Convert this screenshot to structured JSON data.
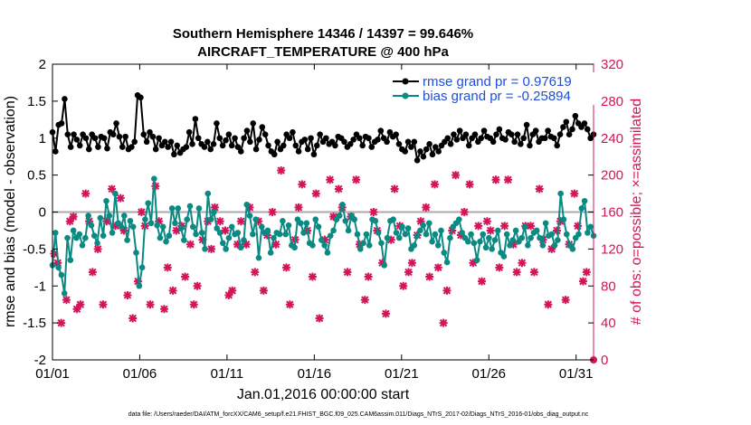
{
  "chart_data": {
    "type": "line",
    "title": "Southern Hemisphere 14346 / 14397 = 99.646%",
    "subtitle": "AIRCRAFT_TEMPERATURE @ 400 hPa",
    "xlabel": "Jan.01,2016 00:00:00 start",
    "ylabel": "rmse and bias (model - observation)",
    "y2label": "# of obs: o=possible; ×=assimilated",
    "ylim": [
      -2,
      2
    ],
    "y2lim": [
      0,
      320
    ],
    "xlim": [
      1,
      32
    ],
    "yticks": [
      "-2",
      "-1.5",
      "-1",
      "-0.5",
      "0",
      "0.5",
      "1",
      "1.5",
      "2"
    ],
    "y2ticks": [
      "0",
      "40",
      "80",
      "120",
      "160",
      "200",
      "240",
      "280",
      "320"
    ],
    "xtick_labels": [
      "01/01",
      "01/06",
      "01/11",
      "01/16",
      "01/21",
      "01/26",
      "01/31"
    ],
    "legend_position": "top-right",
    "footnote": "data file: /Users/raeder/DAI/ATM_forcXX/CAM6_setup/f.e21.FHIST_BGC.f09_025.CAM6assim.011/Diags_NTrS_2017-02/Diags_NTrS_2016-01/obs_diag_output.nc",
    "series": [
      {
        "name": "rmse grand pr = 0.97619",
        "color": "#000000",
        "axis": "left",
        "values": [
          1.08,
          0.82,
          1.18,
          1.2,
          1.53,
          1.05,
          0.88,
          1.05,
          0.98,
          0.9,
          1.05,
          1.0,
          0.85,
          1.05,
          1.0,
          0.88,
          1.02,
          1.0,
          0.86,
          1.08,
          1.05,
          1.2,
          1.02,
          0.88,
          1.02,
          0.85,
          0.88,
          0.95,
          1.58,
          1.55,
          1.05,
          0.95,
          1.08,
          1.02,
          0.85,
          1.0,
          0.9,
          0.95,
          0.88,
          0.95,
          0.78,
          0.9,
          0.8,
          0.85,
          0.88,
          1.08,
          0.92,
          1.26,
          1.0,
          0.92,
          0.88,
          0.95,
          0.85,
          0.92,
          1.2,
          1.0,
          0.9,
          0.97,
          1.05,
          0.9,
          1.0,
          0.88,
          0.82,
          1.0,
          1.1,
          0.95,
          1.2,
          0.85,
          0.98,
          1.15,
          1.05,
          0.9,
          0.82,
          0.78,
          0.95,
          0.85,
          0.9,
          1.05,
          1.0,
          1.08,
          0.9,
          0.82,
          0.95,
          0.98,
          0.85,
          1.0,
          0.78,
          0.9,
          1.05,
          0.95,
          1.0,
          0.92,
          0.95,
          0.9,
          1.02,
          1.0,
          0.95,
          0.88,
          0.92,
          0.98,
          1.05,
          1.0,
          0.9,
          1.02,
          1.0,
          0.88,
          0.95,
          0.98,
          1.1,
          1.0,
          0.95,
          1.08,
          1.02,
          1.05,
          0.92,
          0.85,
          0.82,
          0.95,
          0.88,
          0.95,
          0.7,
          0.82,
          0.75,
          0.85,
          0.92,
          0.78,
          0.88,
          0.82,
          0.9,
          0.95,
          1.0,
          0.92,
          1.05,
          0.98,
          1.1,
          1.0,
          1.05,
          0.9,
          1.0,
          1.05,
          0.95,
          1.0,
          1.1,
          1.02,
          1.0,
          0.95,
          1.05,
          1.12,
          1.0,
          0.98,
          1.08,
          1.05,
          0.95,
          1.05,
          0.92,
          1.0,
          1.18,
          0.9,
          1.05,
          1.1,
          0.95,
          1.0,
          1.0,
          1.1,
          1.02,
          1.0,
          0.9,
          1.05,
          1.15,
          1.22,
          1.05,
          1.12,
          1.3,
          1.2,
          1.15,
          1.2,
          1.12,
          1.0,
          1.05
        ]
      },
      {
        "name": "bias grand pr = -0.25894",
        "color": "#0a8a82",
        "axis": "left",
        "values": [
          -0.72,
          -0.28,
          -0.75,
          -0.85,
          -1.1,
          -0.35,
          -0.65,
          -0.25,
          -0.35,
          -0.3,
          -0.45,
          -0.35,
          -0.05,
          -0.18,
          -0.32,
          -0.42,
          -0.08,
          -0.32,
          0.15,
          -0.05,
          -0.28,
          0.25,
          -0.15,
          -0.2,
          -0.05,
          -0.38,
          -0.12,
          -0.2,
          -0.55,
          -1.0,
          -0.75,
          -0.1,
          0.12,
          -0.15,
          0.45,
          -0.18,
          -0.35,
          -0.2,
          -0.4,
          -0.32,
          0.05,
          -0.15,
          0.05,
          -0.22,
          -0.38,
          -0.1,
          0.08,
          -0.2,
          -0.3,
          0.05,
          -0.28,
          -0.5,
          0.25,
          -0.1,
          0.0,
          -0.22,
          -0.28,
          -0.42,
          -0.5,
          -0.35,
          -0.2,
          -0.3,
          -0.28,
          -0.48,
          -0.38,
          0.1,
          -0.05,
          -0.3,
          -0.1,
          -0.62,
          -0.2,
          -0.28,
          -0.25,
          -0.55,
          -0.35,
          -0.28,
          -0.3,
          -0.12,
          -0.3,
          -0.18,
          -0.45,
          -0.48,
          -0.1,
          -0.15,
          -0.28,
          -0.15,
          -0.42,
          -0.45,
          -0.1,
          -0.2,
          -0.38,
          -0.45,
          -0.55,
          -0.32,
          -0.25,
          -0.1,
          -0.05,
          0.1,
          -0.12,
          -0.25,
          -0.05,
          -0.1,
          -0.3,
          -0.5,
          -0.42,
          -0.3,
          -0.45,
          -0.1,
          -0.12,
          -0.28,
          -0.42,
          -0.72,
          -0.35,
          -0.12,
          -0.1,
          -0.28,
          -0.35,
          -0.2,
          -0.3,
          -0.22,
          -0.5,
          -0.45,
          -0.32,
          -0.25,
          -0.18,
          -0.3,
          -0.15,
          -0.4,
          -0.3,
          -0.45,
          -0.25,
          -0.55,
          -0.68,
          -0.35,
          -0.2,
          -0.15,
          -0.1,
          -0.28,
          -0.35,
          -0.4,
          -0.3,
          -0.42,
          -0.65,
          -0.4,
          -0.3,
          -0.48,
          -0.35,
          -0.5,
          -0.38,
          -0.25,
          -0.55,
          -0.6,
          -0.3,
          -0.45,
          -0.38,
          -0.25,
          -0.4,
          -0.35,
          -0.2,
          -0.45,
          -0.35,
          -0.28,
          -0.25,
          -0.35,
          -0.45,
          -0.15,
          -0.32,
          -0.3,
          -0.45,
          -0.38,
          0.25,
          -0.1,
          -0.3,
          -0.45,
          -0.5,
          -0.35,
          -0.3,
          0.05,
          0.15,
          -0.28,
          -0.2,
          -0.32
        ]
      }
    ],
    "obs_counts": {
      "color": "#d4145a",
      "axis": "right",
      "points": [
        [
          1.1,
          115
        ],
        [
          1.3,
          105
        ],
        [
          1.5,
          40
        ],
        [
          1.8,
          65
        ],
        [
          2.0,
          150
        ],
        [
          2.2,
          155
        ],
        [
          2.4,
          55
        ],
        [
          2.6,
          60
        ],
        [
          2.9,
          180
        ],
        [
          3.1,
          150
        ],
        [
          3.3,
          95
        ],
        [
          3.6,
          120
        ],
        [
          3.9,
          60
        ],
        [
          4.1,
          150
        ],
        [
          4.4,
          185
        ],
        [
          4.6,
          145
        ],
        [
          4.9,
          175
        ],
        [
          5.1,
          140
        ],
        [
          5.3,
          70
        ],
        [
          5.6,
          45
        ],
        [
          5.9,
          85
        ],
        [
          6.1,
          160
        ],
        [
          6.3,
          145
        ],
        [
          6.6,
          60
        ],
        [
          6.9,
          188
        ],
        [
          7.1,
          150
        ],
        [
          7.4,
          55
        ],
        [
          7.6,
          100
        ],
        [
          7.9,
          75
        ],
        [
          8.1,
          140
        ],
        [
          8.4,
          145
        ],
        [
          8.6,
          90
        ],
        [
          8.9,
          125
        ],
        [
          9.1,
          60
        ],
        [
          9.3,
          80
        ],
        [
          9.6,
          130
        ],
        [
          9.9,
          150
        ],
        [
          10.1,
          120
        ],
        [
          10.3,
          165
        ],
        [
          10.6,
          150
        ],
        [
          10.9,
          140
        ],
        [
          11.1,
          70
        ],
        [
          11.3,
          75
        ],
        [
          11.6,
          125
        ],
        [
          11.8,
          150
        ],
        [
          12.1,
          125
        ],
        [
          12.3,
          165
        ],
        [
          12.6,
          95
        ],
        [
          12.8,
          150
        ],
        [
          13.1,
          75
        ],
        [
          13.3,
          135
        ],
        [
          13.6,
          160
        ],
        [
          13.8,
          125
        ],
        [
          14.1,
          205
        ],
        [
          14.4,
          100
        ],
        [
          14.6,
          60
        ],
        [
          14.9,
          130
        ],
        [
          15.1,
          165
        ],
        [
          15.3,
          190
        ],
        [
          15.6,
          140
        ],
        [
          15.9,
          90
        ],
        [
          16.1,
          180
        ],
        [
          16.3,
          45
        ],
        [
          16.6,
          130
        ],
        [
          16.9,
          195
        ],
        [
          17.1,
          155
        ],
        [
          17.4,
          185
        ],
        [
          17.6,
          165
        ],
        [
          17.9,
          95
        ],
        [
          18.1,
          155
        ],
        [
          18.4,
          195
        ],
        [
          18.6,
          125
        ],
        [
          18.9,
          65
        ],
        [
          19.1,
          90
        ],
        [
          19.4,
          160
        ],
        [
          19.6,
          140
        ],
        [
          19.9,
          105
        ],
        [
          20.1,
          50
        ],
        [
          20.4,
          130
        ],
        [
          20.6,
          185
        ],
        [
          20.9,
          145
        ],
        [
          21.1,
          80
        ],
        [
          21.4,
          95
        ],
        [
          21.6,
          105
        ],
        [
          21.9,
          135
        ],
        [
          22.1,
          150
        ],
        [
          22.4,
          165
        ],
        [
          22.6,
          90
        ],
        [
          22.9,
          190
        ],
        [
          23.1,
          100
        ],
        [
          23.4,
          40
        ],
        [
          23.6,
          75
        ],
        [
          23.9,
          140
        ],
        [
          24.1,
          200
        ],
        [
          24.4,
          135
        ],
        [
          24.6,
          160
        ],
        [
          24.9,
          190
        ],
        [
          25.1,
          105
        ],
        [
          25.4,
          145
        ],
        [
          25.6,
          85
        ],
        [
          25.9,
          150
        ],
        [
          26.1,
          140
        ],
        [
          26.4,
          195
        ],
        [
          26.6,
          100
        ],
        [
          26.9,
          145
        ],
        [
          27.1,
          195
        ],
        [
          27.4,
          125
        ],
        [
          27.6,
          95
        ],
        [
          27.9,
          105
        ],
        [
          28.1,
          145
        ],
        [
          28.4,
          145
        ],
        [
          28.6,
          95
        ],
        [
          28.9,
          185
        ],
        [
          29.1,
          130
        ],
        [
          29.4,
          60
        ],
        [
          29.6,
          120
        ],
        [
          29.9,
          140
        ],
        [
          30.1,
          150
        ],
        [
          30.4,
          65
        ],
        [
          30.6,
          125
        ],
        [
          30.9,
          180
        ],
        [
          31.1,
          145
        ],
        [
          31.4,
          85
        ],
        [
          31.6,
          95
        ]
      ]
    }
  }
}
